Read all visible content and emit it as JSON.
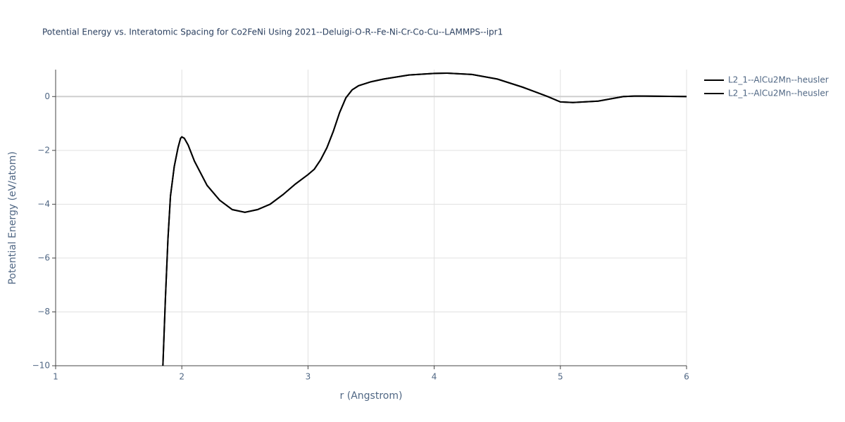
{
  "chart_data": {
    "type": "line",
    "title": "Potential Energy vs. Interatomic Spacing for Co2FeNi Using 2021--Deluigi-O-R--Fe-Ni-Cr-Co-Cu--LAMMPS--ipr1",
    "x_label": "r (Angstrom)",
    "y_label": "Potential Energy (eV/atom)",
    "x": [
      1.85,
      1.87,
      1.89,
      1.91,
      1.94,
      1.97,
      1.99,
      2.0,
      2.02,
      2.05,
      2.1,
      2.2,
      2.3,
      2.4,
      2.5,
      2.6,
      2.7,
      2.8,
      2.9,
      3.0,
      3.05,
      3.1,
      3.15,
      3.2,
      3.25,
      3.3,
      3.35,
      3.4,
      3.5,
      3.6,
      3.8,
      4.0,
      4.1,
      4.3,
      4.5,
      4.7,
      4.9,
      5.0,
      5.1,
      5.3,
      5.5,
      5.6,
      6.0
    ],
    "series": [
      {
        "name": "L2_1--AlCu2Mn--heusler",
        "color": "#000000",
        "values": [
          -10,
          -7.5,
          -5.3,
          -3.7,
          -2.6,
          -1.9,
          -1.55,
          -1.5,
          -1.55,
          -1.8,
          -2.4,
          -3.3,
          -3.85,
          -4.2,
          -4.3,
          -4.2,
          -4.0,
          -3.65,
          -3.25,
          -2.9,
          -2.7,
          -2.35,
          -1.9,
          -1.3,
          -0.6,
          -0.05,
          0.25,
          0.4,
          0.55,
          0.65,
          0.8,
          0.86,
          0.87,
          0.82,
          0.65,
          0.35,
          0.0,
          -0.2,
          -0.22,
          -0.17,
          0.0,
          0.02,
          0.0
        ]
      },
      {
        "name": "L2_1--AlCu2Mn--heusler",
        "color": "#000000",
        "values": [
          -10,
          -7.5,
          -5.3,
          -3.7,
          -2.6,
          -1.9,
          -1.55,
          -1.5,
          -1.55,
          -1.8,
          -2.4,
          -3.3,
          -3.85,
          -4.2,
          -4.3,
          -4.2,
          -4.0,
          -3.65,
          -3.25,
          -2.9,
          -2.7,
          -2.35,
          -1.9,
          -1.3,
          -0.6,
          -0.05,
          0.25,
          0.4,
          0.55,
          0.65,
          0.8,
          0.86,
          0.87,
          0.82,
          0.65,
          0.35,
          0.0,
          -0.2,
          -0.22,
          -0.17,
          0.0,
          0.02,
          0.0
        ]
      }
    ],
    "xlim": [
      1,
      6
    ],
    "ylim": [
      -10,
      1
    ],
    "xticks": [
      1,
      2,
      3,
      4,
      5,
      6
    ],
    "yticks": [
      {
        "value": -10,
        "label": "−10"
      },
      {
        "value": -8,
        "label": "−8"
      },
      {
        "value": -6,
        "label": "−6"
      },
      {
        "value": -4,
        "label": "−4"
      },
      {
        "value": -2,
        "label": "−2"
      },
      0
    ],
    "grid": true
  }
}
